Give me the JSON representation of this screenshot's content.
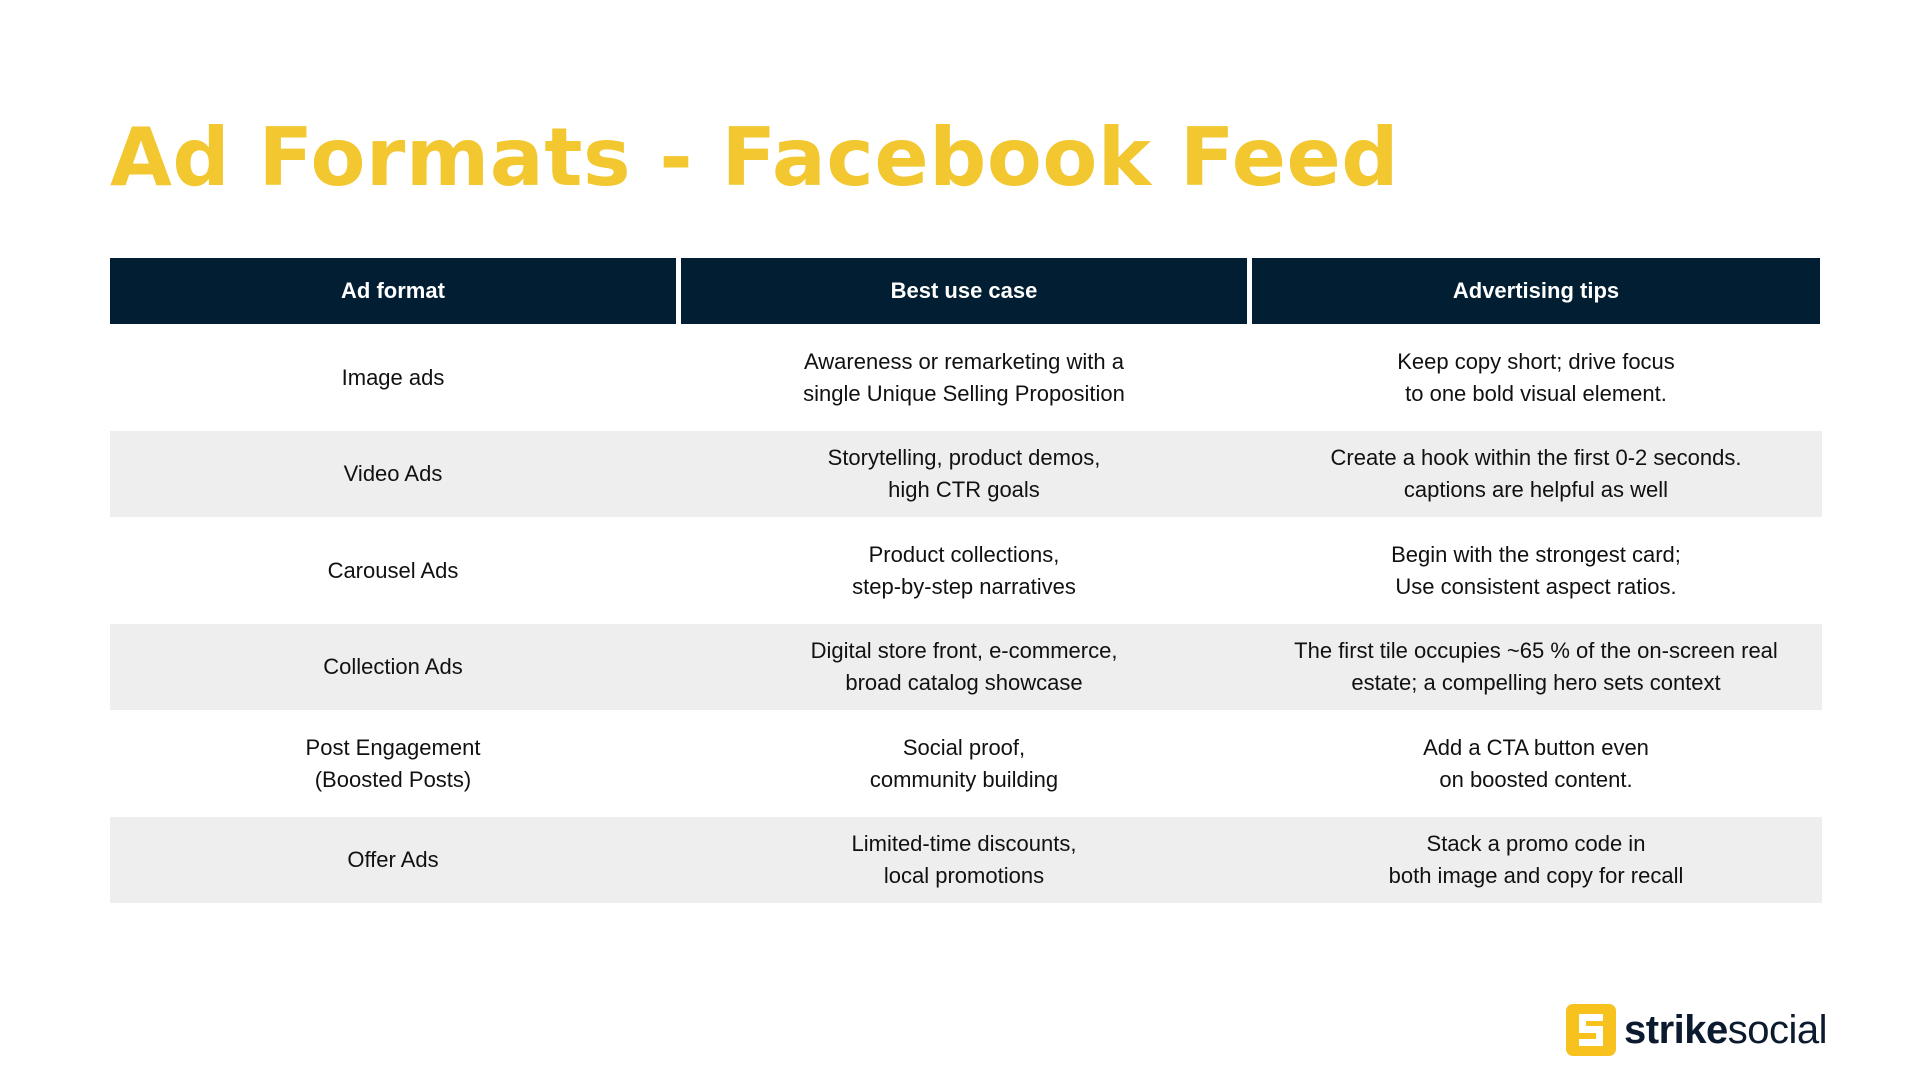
{
  "title": "Ad Formats - Facebook Feed",
  "table": {
    "headers": [
      "Ad format",
      "Best use case",
      "Advertising tips"
    ],
    "rows": [
      [
        "Image ads",
        "Awareness or remarketing with a\nsingle Unique Selling Proposition",
        "Keep copy short; drive focus\nto one bold visual element."
      ],
      [
        "Video Ads",
        "Storytelling, product demos,\nhigh CTR goals",
        "Create a hook within the first 0-2 seconds.\ncaptions are helpful as well"
      ],
      [
        "Carousel Ads",
        "Product collections,\nstep-by-step narratives",
        "Begin with the strongest card;\nUse consistent aspect ratios."
      ],
      [
        "Collection Ads",
        "Digital store front, e-commerce,\nbroad catalog showcase",
        "The first tile occupies ~65 % of the on-screen real\nestate; a compelling hero sets context"
      ],
      [
        "Post Engagement\n(Boosted Posts)",
        "Social proof,\ncommunity building",
        "Add a CTA button even\non boosted content."
      ],
      [
        "Offer Ads",
        "Limited-time discounts,\nlocal promotions",
        "Stack a promo code in\nboth image and copy for recall"
      ]
    ]
  },
  "logo": {
    "brand_bold": "strike",
    "brand_light": "social",
    "icon": "strike-social-logo-icon"
  },
  "colors": {
    "title": "#F2C72F",
    "header_bg": "#021E33",
    "shaded_row": "#EEEEEE",
    "logo_mark": "#F7C21D"
  }
}
